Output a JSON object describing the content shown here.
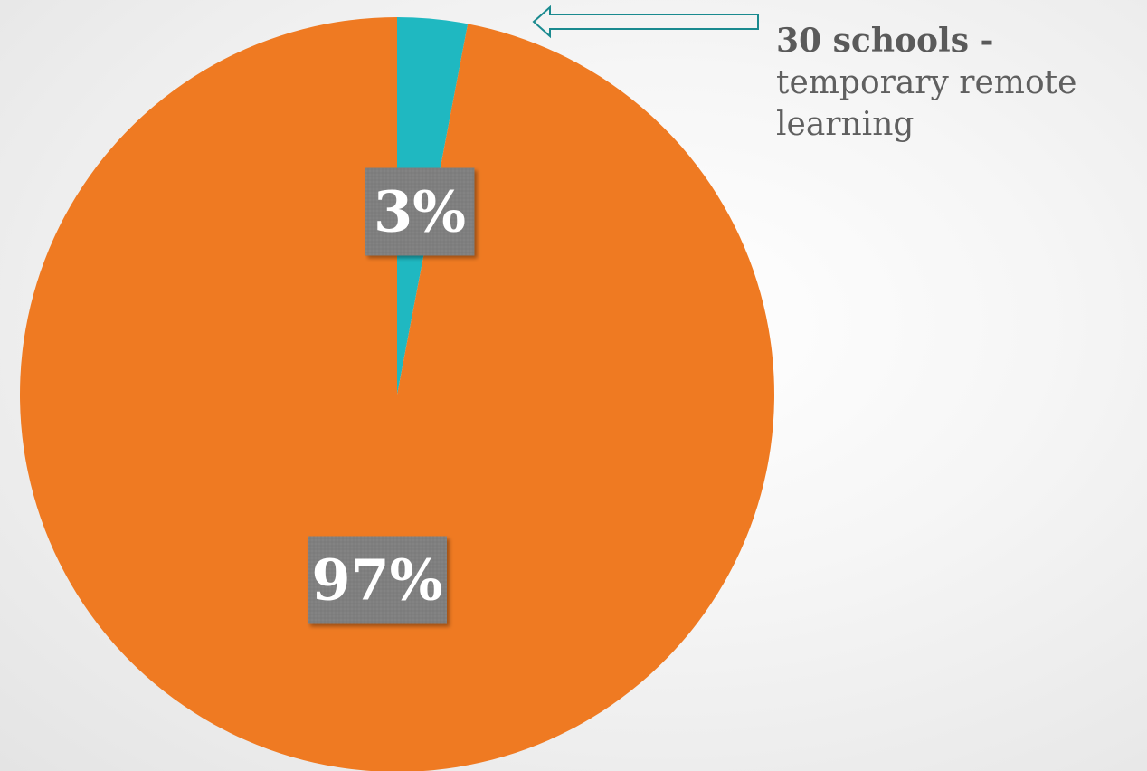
{
  "chart_data": {
    "type": "pie",
    "title": "",
    "start_angle_deg": 0,
    "direction": "clockwise",
    "slices": [
      {
        "label": "",
        "value": 3,
        "data_label": "3%",
        "color": "#1fb8c1"
      },
      {
        "label": "",
        "value": 97,
        "data_label": "97%",
        "color": "#ef7a22"
      }
    ],
    "label_box_color": "#7f7f7f",
    "arrow_color": "#1a8a8f",
    "annotation": {
      "bold": "30 schools -",
      "text": "temporary remote learning"
    }
  }
}
